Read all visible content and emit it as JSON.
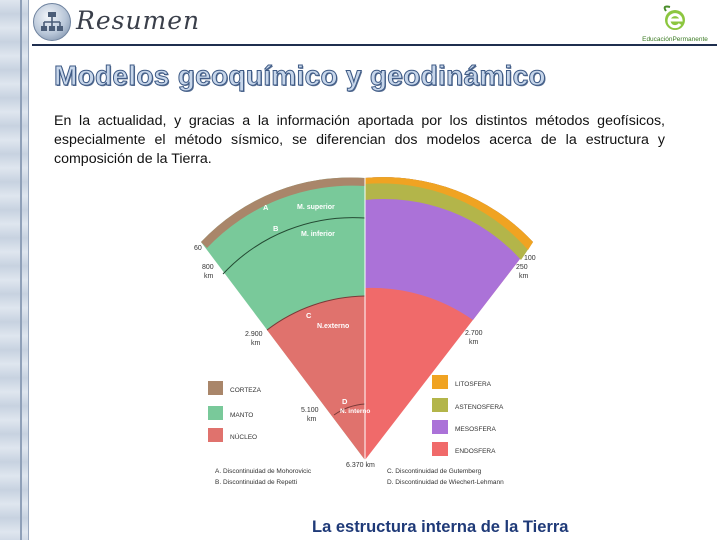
{
  "header": {
    "title": "Resumen",
    "brand_name": "EducaciónPermanente",
    "logo_icon": "network-hierarchy-icon",
    "brand_icon": "e-leaf-logo-icon"
  },
  "slide": {
    "title": "Modelos geoquímico y geodinámico",
    "intro": "En la actualidad, y gracias a la información aportada por los distintos métodos geofísicos, especialmente el método sísmico, se diferencian dos modelos acerca de la estructura y composición de la Tierra."
  },
  "figure": {
    "left": {
      "layers": {
        "crust_mark": "A",
        "upper_mark": "B",
        "outer_mark": "C",
        "inner_mark": "D",
        "upper_mantle": "M. superior",
        "lower_mantle": "M. inferior",
        "outer_core": "N.externo",
        "inner_core": "N. interno"
      },
      "depths": [
        "60",
        "800\nkm",
        "2.900\nkm",
        "5.100\nkm"
      ],
      "depth_60": "60",
      "depth_800": "800",
      "depth_800_unit": "km",
      "depth_2900": "2.900",
      "depth_2900_unit": "km",
      "depth_5100": "5.100",
      "depth_5100_unit": "km"
    },
    "right": {
      "depth_100": "100",
      "depth_250": "250",
      "depth_250_unit": "km",
      "depth_2700": "2.700",
      "depth_2700_unit": "km"
    },
    "center_depth": "6.370 km",
    "legend_left": [
      {
        "label": "CORTEZA",
        "color": "#a9866a"
      },
      {
        "label": "MANTO",
        "color": "#79c99a"
      },
      {
        "label": "NÚCLEO",
        "color": "#e0726d"
      }
    ],
    "legend_right": [
      {
        "label": "LITOSFERA",
        "color": "#f0a322"
      },
      {
        "label": "ASTENOSFERA",
        "color": "#b3b54a"
      },
      {
        "label": "MESOSFERA",
        "color": "#ab72d8"
      },
      {
        "label": "ENDOSFERA",
        "color": "#f06a6a"
      }
    ],
    "notes": {
      "a": "A. Discontinuidad de Mohorovicic",
      "b": "B. Discontinuidad de Repetti",
      "c": "C. Discontinuidad de Gutemberg",
      "d": "D. Discontinuidad de Wiechert-Lehmann"
    }
  },
  "caption": "La estructura interna de la Tierra",
  "colors": {
    "title_fill": "#c7d6ea",
    "title_stroke": "#3e5a85",
    "caption": "#1f3a78"
  }
}
